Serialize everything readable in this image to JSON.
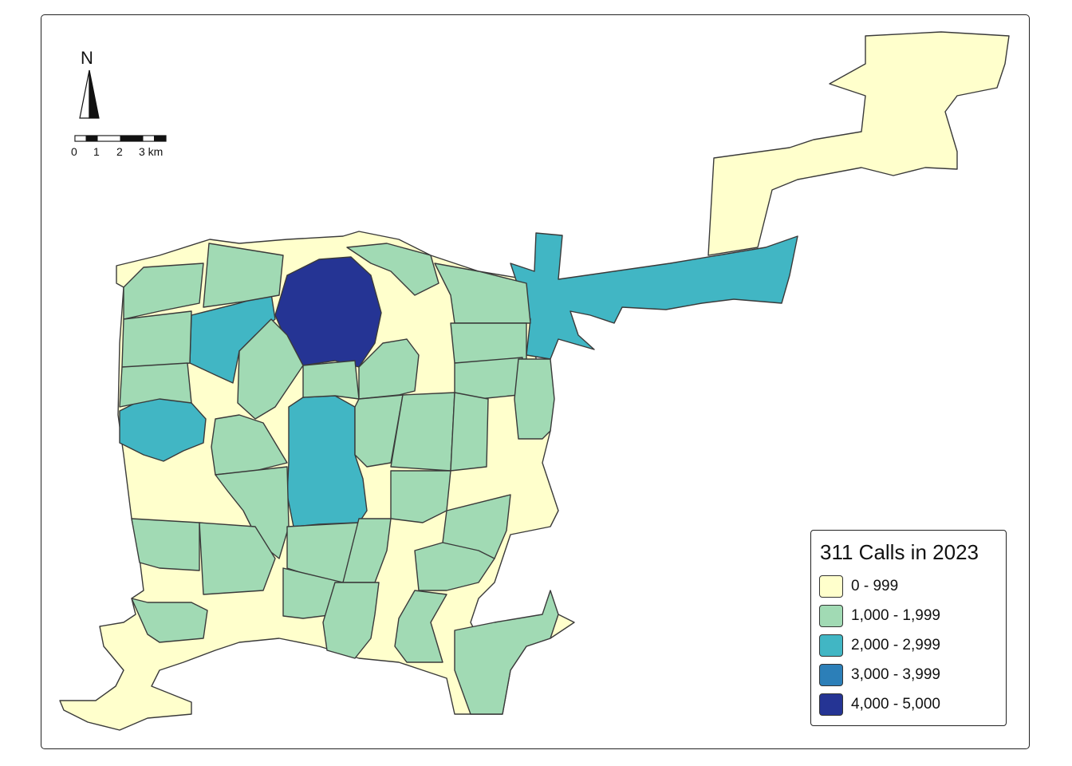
{
  "map": {
    "legend": {
      "title": "311 Calls in 2023",
      "classes": [
        {
          "label": "0 - 999",
          "color": "#ffffcc"
        },
        {
          "label": "1,000 - 1,999",
          "color": "#a1dab4"
        },
        {
          "label": "2,000 - 2,999",
          "color": "#41b6c4"
        },
        {
          "label": "3,000 - 3,999",
          "color": "#2c7fb8"
        },
        {
          "label": "4,000 - 5,000",
          "color": "#253494"
        }
      ]
    },
    "north_arrow": {
      "letter": "N",
      "icon": "north-arrow-icon"
    },
    "scale_bar": {
      "labels": [
        "0",
        "1",
        "2",
        "3 km"
      ],
      "icon": "scale-bar-icon"
    },
    "colors": {
      "border": "#3a3a3a",
      "frame": "#222222"
    }
  }
}
